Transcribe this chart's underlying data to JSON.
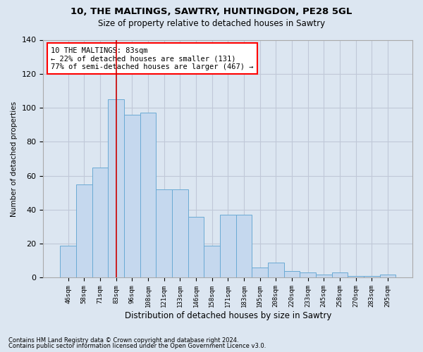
{
  "title1": "10, THE MALTINGS, SAWTRY, HUNTINGDON, PE28 5GL",
  "title2": "Size of property relative to detached houses in Sawtry",
  "xlabel": "Distribution of detached houses by size in Sawtry",
  "ylabel": "Number of detached properties",
  "footer1": "Contains HM Land Registry data © Crown copyright and database right 2024.",
  "footer2": "Contains public sector information licensed under the Open Government Licence v3.0.",
  "annotation_title": "10 THE MALTINGS: 83sqm",
  "annotation_line1": "← 22% of detached houses are smaller (131)",
  "annotation_line2": "77% of semi-detached houses are larger (467) →",
  "categories": [
    "46sqm",
    "58sqm",
    "71sqm",
    "83sqm",
    "96sqm",
    "108sqm",
    "121sqm",
    "133sqm",
    "146sqm",
    "158sqm",
    "171sqm",
    "183sqm",
    "195sqm",
    "208sqm",
    "220sqm",
    "233sqm",
    "245sqm",
    "258sqm",
    "270sqm",
    "283sqm",
    "295sqm"
  ],
  "values": [
    19,
    55,
    65,
    105,
    96,
    97,
    52,
    52,
    36,
    19,
    37,
    37,
    6,
    9,
    4,
    3,
    2,
    3,
    1,
    1,
    2
  ],
  "bar_color": "#c5d8ee",
  "bar_edge_color": "#6aaad4",
  "highlight_index": 3,
  "highlight_line_color": "#cc0000",
  "grid_color": "#c0c8d8",
  "background_color": "#dce6f1",
  "plot_background_color": "#dce6f1",
  "ylim": [
    0,
    140
  ],
  "yticks": [
    0,
    20,
    40,
    60,
    80,
    100,
    120,
    140
  ]
}
